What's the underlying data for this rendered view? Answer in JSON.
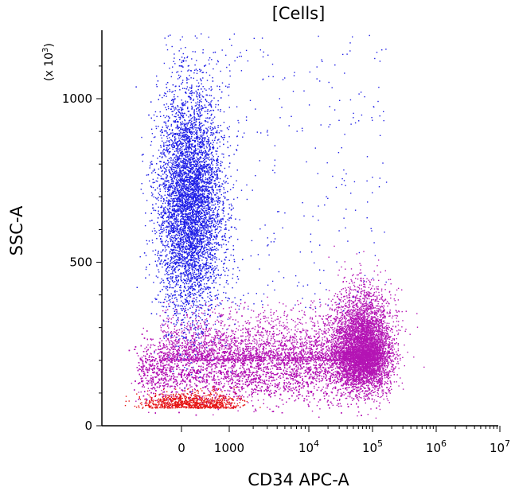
{
  "chart_data": {
    "type": "scatter",
    "title": "[Cells]",
    "xlabel": "CD34 APC-A",
    "ylabel": "SSC-A",
    "y_multiplier": "(x 10",
    "y_multiplier_exp": "3",
    "y_multiplier_close": ")",
    "x_scale": "biexponential",
    "y_scale": "linear",
    "xlim": [
      -1000,
      10000000
    ],
    "ylim": [
      0,
      1200
    ],
    "grid": false,
    "legend": "none",
    "x_ticks": [
      {
        "value": 0,
        "label": "0",
        "exp": ""
      },
      {
        "value": 1000,
        "label": "1000",
        "exp": ""
      },
      {
        "value": 10000,
        "label": "10",
        "exp": "4"
      },
      {
        "value": 100000,
        "label": "10",
        "exp": "5"
      },
      {
        "value": 1000000,
        "label": "10",
        "exp": "6"
      },
      {
        "value": 10000000,
        "label": "10",
        "exp": "7"
      }
    ],
    "y_ticks": [
      {
        "value": 0,
        "label": "0"
      },
      {
        "value": 500,
        "label": "500"
      },
      {
        "value": 1000,
        "label": "1000"
      }
    ],
    "populations": [
      {
        "color": "#1e1ee6",
        "description_hidden": true,
        "x_center": 150,
        "x_spread": 400,
        "y_center": 680,
        "y_spread": 200,
        "count": 9000
      },
      {
        "color": "#b414b4",
        "x_center": 2000,
        "x_spread": 1.0,
        "y_center": 160,
        "y_spread": 60,
        "count": 16000
      },
      {
        "color": "#b414b4",
        "x_center": 60000,
        "x_spread": 0.35,
        "y_center": 260,
        "y_spread": 120,
        "count": 9000
      },
      {
        "color": "#e61414",
        "x_center": -300,
        "x_spread": 250,
        "y_center": 60,
        "y_spread": 20,
        "count": 800
      }
    ],
    "colors": {
      "blue": "#1e1ee6",
      "magenta": "#b414b4",
      "red": "#e61414"
    }
  }
}
